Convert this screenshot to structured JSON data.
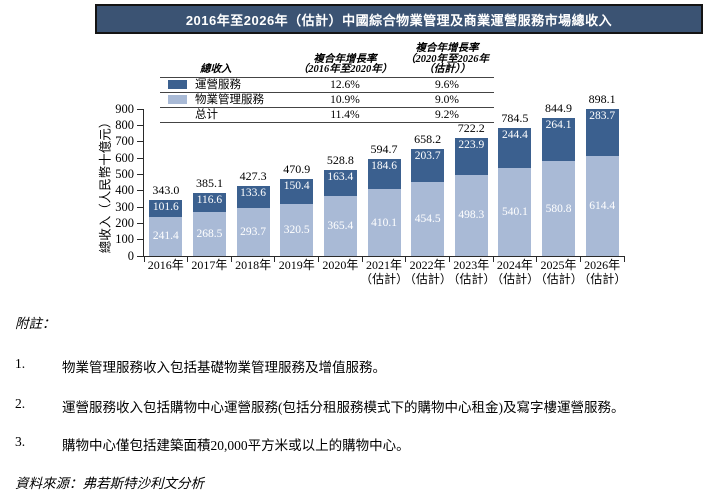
{
  "title": "2016年至2026年（估計）中國綜合物業管理及商業運營服務市場總收入",
  "legend": {
    "header": {
      "revenue_col": "總收入",
      "cagr1": "複合年增長率\n（2016年至2020年）",
      "cagr2": "複合年增長率\n（2020年至2026年\n（估計））"
    },
    "rows": [
      {
        "label": "運營服務",
        "color": "#3b608f",
        "cagr1": "12.6%",
        "cagr2": "9.6%"
      },
      {
        "label": "物業管理服務",
        "color": "#a9bad6",
        "cagr1": "10.9%",
        "cagr2": "9.0%"
      },
      {
        "label": "总计",
        "color": "",
        "cagr1": "11.4%",
        "cagr2": "9.2%"
      }
    ]
  },
  "chart_data": {
    "type": "bar",
    "stacked": true,
    "title": "2016年至2026年（估計）中國綜合物業管理及商業運營服務市場總收入",
    "ylabel": "總收入（人民幣十億元）",
    "ylim": [
      0,
      900
    ],
    "ytick_step": 100,
    "grid": false,
    "legend_position": "top",
    "categories": [
      {
        "line1": "2016年",
        "line2": ""
      },
      {
        "line1": "2017年",
        "line2": ""
      },
      {
        "line1": "2018年",
        "line2": ""
      },
      {
        "line1": "2019年",
        "line2": ""
      },
      {
        "line1": "2020年",
        "line2": ""
      },
      {
        "line1": "2021年",
        "line2": "（估計）"
      },
      {
        "line1": "2022年",
        "line2": "（估計）"
      },
      {
        "line1": "2023年",
        "line2": "（估計）"
      },
      {
        "line1": "2024年",
        "line2": "（估計）"
      },
      {
        "line1": "2025年",
        "line2": "（估計）"
      },
      {
        "line1": "2026年",
        "line2": "（估計）"
      }
    ],
    "series": [
      {
        "name": "物業管理服務",
        "color": "#a9bad6",
        "values": [
          241.4,
          268.5,
          293.7,
          320.5,
          365.4,
          410.1,
          454.5,
          498.3,
          540.1,
          580.8,
          614.4
        ]
      },
      {
        "name": "運營服務",
        "color": "#3b608f",
        "values": [
          101.6,
          116.6,
          133.6,
          150.4,
          163.4,
          184.6,
          203.7,
          223.9,
          244.4,
          264.1,
          283.7
        ]
      }
    ],
    "totals": [
      343.0,
      385.1,
      427.3,
      470.9,
      528.8,
      594.7,
      658.2,
      722.2,
      784.5,
      844.9,
      898.1
    ]
  },
  "notes": {
    "heading": "附註：",
    "items": [
      {
        "num": "1.",
        "text": "物業管理服務收入包括基礎物業管理服務及增值服務。"
      },
      {
        "num": "2.",
        "text": "運營服務收入包括購物中心運營服務(包括分租服務模式下的購物中心租金)及寫字樓運營服務。"
      },
      {
        "num": "3.",
        "text": "購物中心僅包括建築面積20,000平方米或以上的購物中心。"
      }
    ],
    "source": "資料來源：弗若斯特沙利文分析"
  }
}
